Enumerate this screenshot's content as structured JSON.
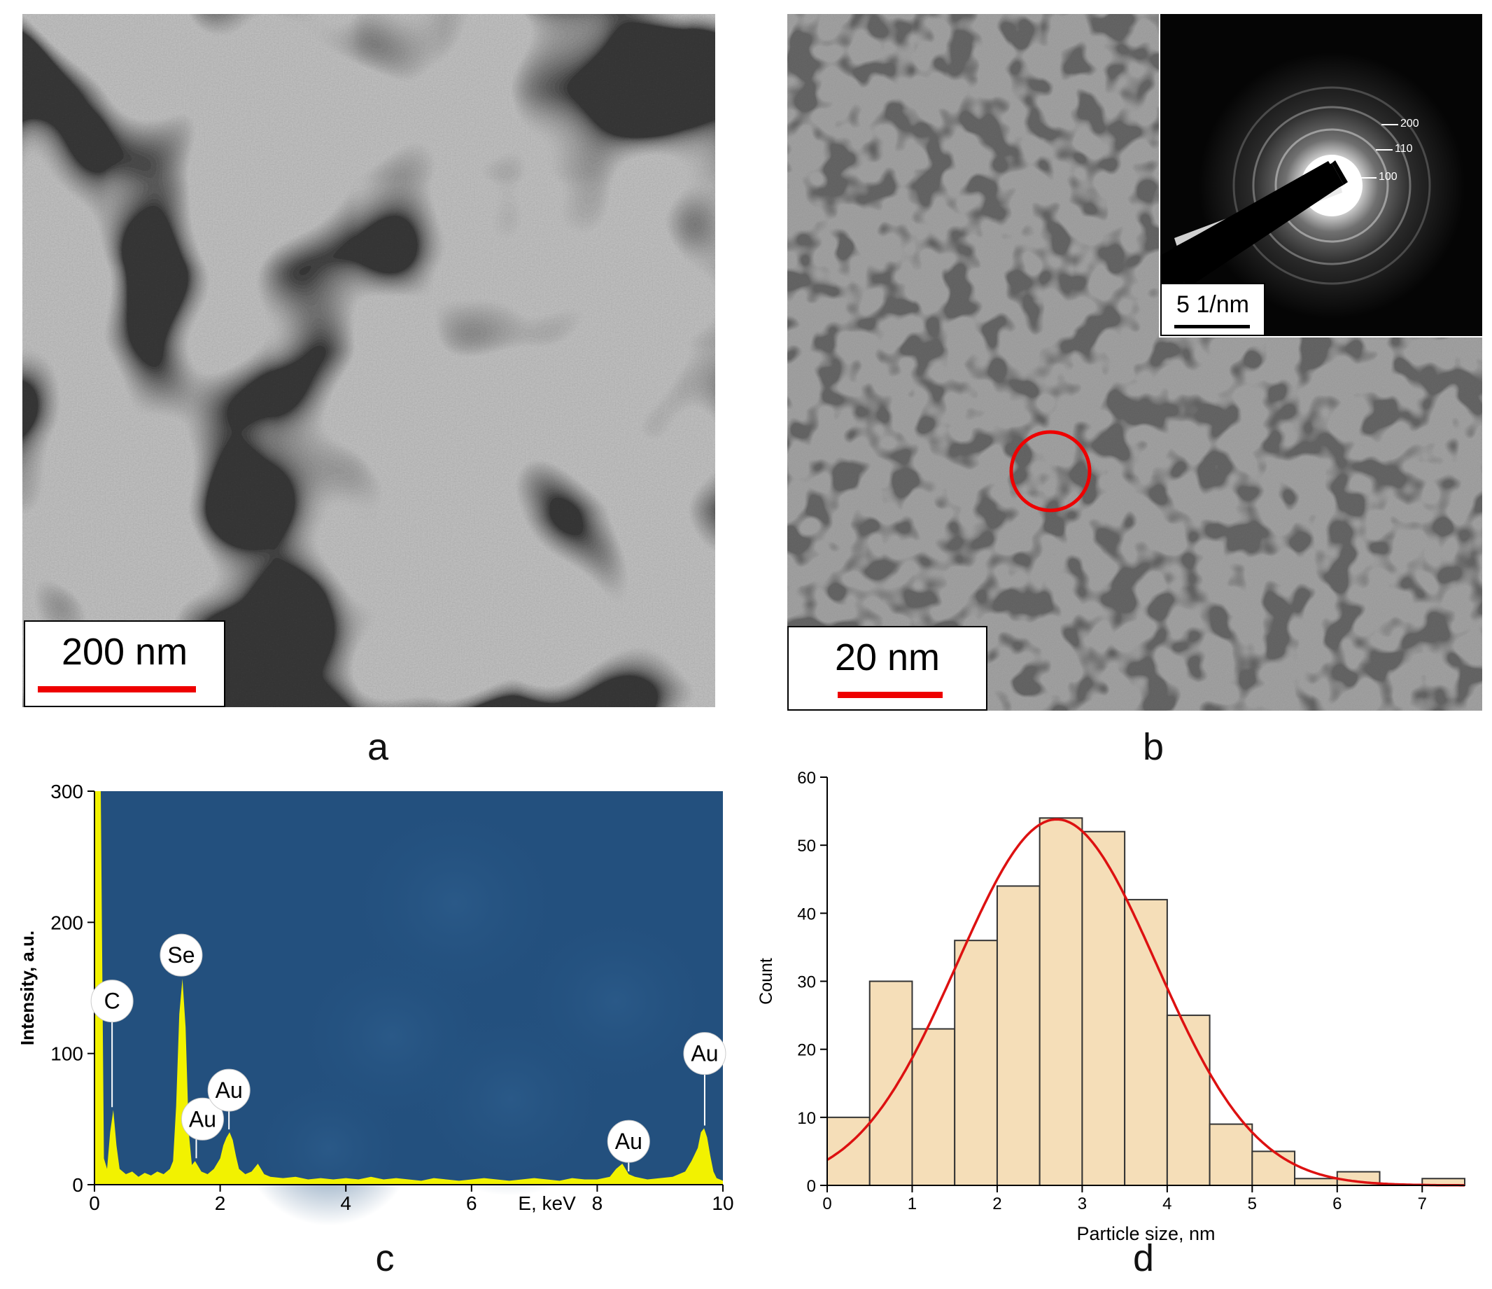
{
  "panels": {
    "a": {
      "label": "a",
      "scale_bar": "200 nm"
    },
    "b": {
      "label": "b",
      "scale_bar": "20 nm",
      "inset": {
        "scale_bar": "5 1/nm",
        "rings": [
          "200",
          "110",
          "100"
        ]
      }
    },
    "c": {
      "label": "c"
    },
    "d": {
      "label": "d"
    }
  },
  "colors": {
    "scale_bar_red": "#ee0000",
    "eds_background": "#23507e",
    "eds_spectrum": "#f2f200",
    "histogram_fill": "#f5deb8",
    "fit_curve": "#dd1111"
  },
  "chart_data": [
    {
      "type": "area",
      "panel": "c",
      "xlabel": "E,  keV",
      "ylabel": "Intensity, a.u.",
      "xlim": [
        0,
        10
      ],
      "ylim": [
        0,
        300
      ],
      "x_ticks": [
        "0",
        "2",
        "4",
        "6",
        "8",
        "10"
      ],
      "y_ticks": [
        "0",
        "100",
        "200",
        "300"
      ],
      "peaks": [
        {
          "label": "C",
          "x": 0.28,
          "y": 57
        },
        {
          "label": "Se",
          "x": 1.38,
          "y": 157
        },
        {
          "label": "Au",
          "x": 1.62,
          "y": 18
        },
        {
          "label": "Au",
          "x": 2.14,
          "y": 40
        },
        {
          "label": "Au",
          "x": 8.5,
          "y": 8
        },
        {
          "label": "Au",
          "x": 9.71,
          "y": 43
        }
      ],
      "x": [
        0.0,
        0.05,
        0.1,
        0.15,
        0.2,
        0.25,
        0.3,
        0.35,
        0.4,
        0.5,
        0.6,
        0.7,
        0.8,
        0.9,
        1.0,
        1.1,
        1.2,
        1.25,
        1.3,
        1.35,
        1.4,
        1.45,
        1.5,
        1.55,
        1.6,
        1.7,
        1.8,
        1.9,
        2.0,
        2.05,
        2.1,
        2.15,
        2.2,
        2.25,
        2.3,
        2.4,
        2.5,
        2.6,
        2.7,
        2.8,
        3.0,
        3.2,
        3.4,
        3.6,
        3.8,
        4.0,
        4.2,
        4.4,
        4.6,
        4.8,
        5.0,
        5.2,
        5.4,
        5.6,
        5.8,
        6.0,
        6.2,
        6.4,
        6.6,
        6.8,
        7.0,
        7.2,
        7.4,
        7.6,
        7.8,
        8.0,
        8.2,
        8.3,
        8.4,
        8.5,
        8.6,
        8.8,
        9.0,
        9.2,
        9.4,
        9.5,
        9.6,
        9.65,
        9.7,
        9.75,
        9.8,
        9.85,
        9.9,
        10.0
      ],
      "y": [
        300,
        300,
        300,
        20,
        12,
        40,
        57,
        30,
        12,
        8,
        10,
        6,
        9,
        7,
        10,
        8,
        12,
        18,
        60,
        130,
        157,
        120,
        40,
        15,
        18,
        10,
        8,
        12,
        20,
        30,
        36,
        40,
        34,
        22,
        12,
        8,
        10,
        16,
        8,
        6,
        5,
        6,
        4,
        5,
        4,
        5,
        4,
        6,
        4,
        5,
        4,
        3,
        5,
        4,
        3,
        4,
        5,
        4,
        3,
        4,
        5,
        4,
        3,
        5,
        4,
        4,
        6,
        12,
        16,
        8,
        6,
        4,
        5,
        6,
        10,
        18,
        28,
        40,
        43,
        36,
        22,
        10,
        5,
        3
      ]
    },
    {
      "type": "bar",
      "panel": "d",
      "xlabel": "Particle size, nm",
      "ylabel": "Count",
      "xlim": [
        0,
        7.5
      ],
      "ylim": [
        0,
        60
      ],
      "x_ticks": [
        "0",
        "1",
        "2",
        "3",
        "4",
        "5",
        "6",
        "7"
      ],
      "y_ticks": [
        "0",
        "10",
        "20",
        "30",
        "40",
        "50",
        "60"
      ],
      "bin_width": 0.5,
      "bin_starts": [
        0,
        0.5,
        1,
        1.5,
        2,
        2.5,
        3,
        3.5,
        4,
        4.5,
        5,
        5.5,
        6,
        6.5,
        7
      ],
      "values": [
        10,
        30,
        23,
        36,
        44,
        54,
        52,
        42,
        25,
        9,
        5,
        1,
        2,
        0,
        1
      ],
      "fit": {
        "type": "gaussian",
        "peak": 53.8,
        "center": 2.7,
        "sigma": 1.17
      }
    }
  ]
}
